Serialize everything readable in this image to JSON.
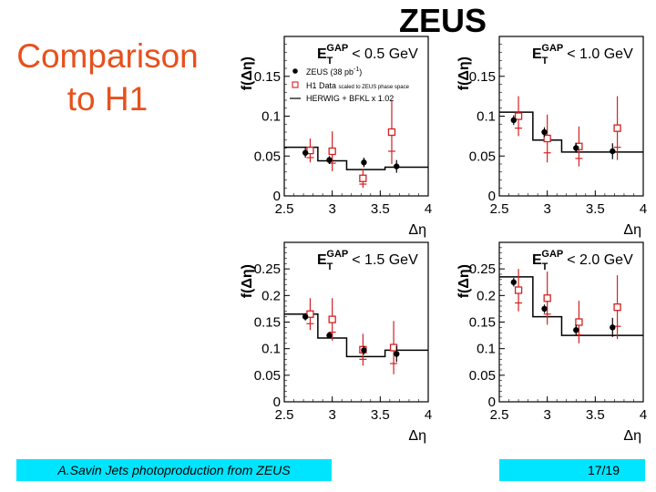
{
  "slide": {
    "title_line1": "Comparison",
    "title_line2": "to H1",
    "experiment": "ZEUS",
    "footer_left": "A.Savin Jets photoproduction from ZEUS",
    "footer_right": "17/19"
  },
  "colors": {
    "title": "#e8501c",
    "h1": "#d42020",
    "zeus": "#000000",
    "footer_bg": "#00e5ff"
  },
  "chart_data": [
    {
      "type": "scatter",
      "cut": "< 0.5 GeV",
      "xlabel": "Δη",
      "ylabel": "f(Δη)",
      "xlim": [
        2.5,
        4
      ],
      "ylim": [
        0,
        0.2
      ],
      "xticks": [
        "2.5",
        "3",
        "3.5",
        "4"
      ],
      "xtick_values": [
        2.5,
        3,
        3.5,
        4
      ],
      "yticks": [
        "0",
        "0.05",
        "0.1",
        "0.15"
      ],
      "ytick_values": [
        0,
        0.05,
        0.1,
        0.15
      ],
      "legend": {
        "zeus": "ZEUS (38 pb",
        "zeus_sup": "-1",
        "zeus_end": ")",
        "h1": "H1 Data",
        "h1_note": "scaled to ZEUS phase space",
        "mc": "HERWIG + BFKL x 1.02"
      },
      "series": [
        {
          "name": "ZEUS (38 pb-1)",
          "x": [
            2.72,
            2.97,
            3.33,
            3.67
          ],
          "y": [
            0.054,
            0.045,
            0.042,
            0.037
          ],
          "err": [
            0.006,
            0.005,
            0.006,
            0.008
          ]
        },
        {
          "name": "H1 Data",
          "x": [
            2.77,
            3.0,
            3.32,
            3.62
          ],
          "y": [
            0.057,
            0.056,
            0.022,
            0.08
          ],
          "err": [
            0.015,
            0.025,
            0.012,
            0.04
          ]
        },
        {
          "name": "HERWIG + BFKL x 1.02",
          "step_edges": [
            2.5,
            2.85,
            3.15,
            3.55,
            4.0
          ],
          "step_values": [
            0.061,
            0.044,
            0.033,
            0.036
          ]
        }
      ]
    },
    {
      "type": "scatter",
      "cut": "< 1.0 GeV",
      "xlabel": "Δη",
      "ylabel": "f(Δη)",
      "xlim": [
        2.5,
        4
      ],
      "ylim": [
        0,
        0.2
      ],
      "xticks": [
        "2.5",
        "3",
        "3.5",
        "4"
      ],
      "xtick_values": [
        2.5,
        3,
        3.5,
        4
      ],
      "yticks": [
        "0",
        "0.05",
        "0.1",
        "0.15"
      ],
      "ytick_values": [
        0,
        0.05,
        0.1,
        0.15
      ],
      "series": [
        {
          "name": "ZEUS (38 pb-1)",
          "x": [
            2.65,
            2.97,
            3.3,
            3.68
          ],
          "y": [
            0.095,
            0.08,
            0.06,
            0.056
          ],
          "err": [
            0.006,
            0.006,
            0.006,
            0.01
          ]
        },
        {
          "name": "H1 Data",
          "x": [
            2.7,
            3.0,
            3.33,
            3.73
          ],
          "y": [
            0.1,
            0.072,
            0.062,
            0.085
          ],
          "err": [
            0.025,
            0.03,
            0.025,
            0.04
          ]
        },
        {
          "name": "HERWIG + BFKL x 1.02",
          "step_edges": [
            2.5,
            2.85,
            3.15,
            3.55,
            4.0
          ],
          "step_values": [
            0.105,
            0.07,
            0.055,
            0.055
          ]
        }
      ]
    },
    {
      "type": "scatter",
      "cut": "< 1.5 GeV",
      "xlabel": "Δη",
      "ylabel": "f(Δη)",
      "xlim": [
        2.5,
        4
      ],
      "ylim": [
        0,
        0.3
      ],
      "xticks": [
        "2.5",
        "3",
        "3.5",
        "4"
      ],
      "xtick_values": [
        2.5,
        3,
        3.5,
        4
      ],
      "yticks": [
        "0",
        "0.05",
        "0.1",
        "0.15",
        "0.2",
        "0.25"
      ],
      "ytick_values": [
        0,
        0.05,
        0.1,
        0.15,
        0.2,
        0.25
      ],
      "series": [
        {
          "name": "ZEUS (38 pb-1)",
          "x": [
            2.72,
            2.97,
            3.33,
            3.67
          ],
          "y": [
            0.16,
            0.125,
            0.097,
            0.09
          ],
          "err": [
            0.007,
            0.006,
            0.008,
            0.015
          ]
        },
        {
          "name": "H1 Data",
          "x": [
            2.77,
            3.0,
            3.32,
            3.64
          ],
          "y": [
            0.165,
            0.155,
            0.098,
            0.102
          ],
          "err": [
            0.03,
            0.04,
            0.03,
            0.05
          ]
        },
        {
          "name": "HERWIG + BFKL x 1.02",
          "step_edges": [
            2.5,
            2.85,
            3.15,
            3.55,
            4.0
          ],
          "step_values": [
            0.165,
            0.12,
            0.085,
            0.097
          ]
        }
      ]
    },
    {
      "type": "scatter",
      "cut": "< 2.0 GeV",
      "xlabel": "Δη",
      "ylabel": "f(Δη)",
      "xlim": [
        2.5,
        4
      ],
      "ylim": [
        0,
        0.3
      ],
      "xticks": [
        "2.5",
        "3",
        "3.5",
        "4"
      ],
      "xtick_values": [
        2.5,
        3,
        3.5,
        4
      ],
      "yticks": [
        "0",
        "0.05",
        "0.1",
        "0.15",
        "0.2",
        "0.25"
      ],
      "ytick_values": [
        0,
        0.05,
        0.1,
        0.15,
        0.2,
        0.25
      ],
      "series": [
        {
          "name": "ZEUS (38 pb-1)",
          "x": [
            2.65,
            2.97,
            3.3,
            3.68
          ],
          "y": [
            0.225,
            0.175,
            0.135,
            0.14
          ],
          "err": [
            0.008,
            0.008,
            0.01,
            0.018
          ]
        },
        {
          "name": "H1 Data",
          "x": [
            2.7,
            3.0,
            3.33,
            3.73
          ],
          "y": [
            0.21,
            0.195,
            0.15,
            0.178
          ],
          "err": [
            0.04,
            0.05,
            0.04,
            0.06
          ]
        },
        {
          "name": "HERWIG + BFKL x 1.02",
          "step_edges": [
            2.5,
            2.85,
            3.15,
            3.55,
            4.0
          ],
          "step_values": [
            0.235,
            0.16,
            0.125,
            0.125
          ]
        }
      ]
    }
  ]
}
